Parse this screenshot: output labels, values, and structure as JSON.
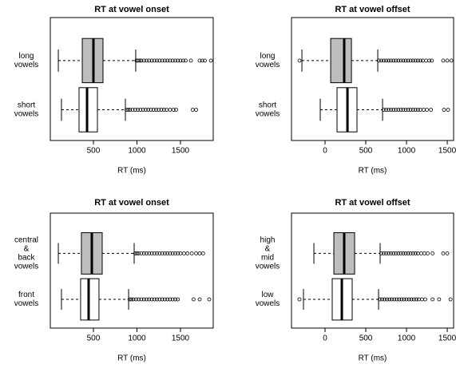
{
  "chart_data": [
    {
      "type": "boxplot",
      "title": "RT at vowel onset",
      "x_label": "RT (ms)",
      "categories": [
        [
          "long",
          "vowels"
        ],
        [
          "short",
          "vowels"
        ]
      ],
      "box_colors": [
        "#bebebe",
        "#ffffff"
      ],
      "xlim": [
        5,
        1876
      ],
      "xticks": [
        500,
        1000,
        1500
      ],
      "boxes": [
        {
          "whislo": 97,
          "q1": 372,
          "med": 500,
          "q3": 610,
          "whishi": 986,
          "fliers": [
            995,
            1010,
            1030,
            1050,
            1080,
            1110,
            1140,
            1170,
            1200,
            1230,
            1260,
            1290,
            1320,
            1350,
            1380,
            1410,
            1440,
            1470,
            1500,
            1530,
            1560,
            1620,
            1720,
            1750,
            1780,
            1850
          ]
        },
        {
          "whislo": 133,
          "q1": 335,
          "med": 427,
          "q3": 546,
          "whishi": 867,
          "fliers": [
            880,
            900,
            920,
            950,
            980,
            1010,
            1040,
            1070,
            1100,
            1130,
            1160,
            1190,
            1220,
            1250,
            1280,
            1310,
            1340,
            1380,
            1420,
            1450,
            1640,
            1680
          ]
        }
      ]
    },
    {
      "type": "boxplot",
      "title": "RT at vowel offset",
      "x_label": "RT (ms)",
      "categories": [
        [
          "long",
          "vowels"
        ],
        [
          "short",
          "vowels"
        ]
      ],
      "box_colors": [
        "#bebebe",
        "#ffffff"
      ],
      "xlim": [
        -412,
        1578
      ],
      "xticks": [
        0,
        500,
        1000,
        1500
      ],
      "boxes": [
        {
          "whislo": -284,
          "q1": 69,
          "med": 235,
          "q3": 324,
          "whishi": 647,
          "fliers": [
            -314,
            660,
            690,
            720,
            750,
            780,
            810,
            840,
            870,
            900,
            930,
            960,
            990,
            1020,
            1050,
            1080,
            1110,
            1140,
            1170,
            1200,
            1240,
            1280,
            1310,
            1450,
            1500,
            1550
          ]
        },
        {
          "whislo": -59,
          "q1": 147,
          "med": 275,
          "q3": 392,
          "whishi": 706,
          "fliers": [
            720,
            750,
            780,
            810,
            840,
            870,
            900,
            930,
            960,
            990,
            1020,
            1050,
            1080,
            1110,
            1140,
            1170,
            1210,
            1250,
            1300,
            1460,
            1510
          ]
        }
      ]
    },
    {
      "type": "boxplot",
      "title": "RT at vowel onset",
      "x_label": "RT (ms)",
      "categories": [
        [
          "central",
          "&",
          "back",
          "vowels"
        ],
        [
          "front",
          "vowels"
        ]
      ],
      "box_colors": [
        "#bebebe",
        "#ffffff"
      ],
      "xlim": [
        5,
        1876
      ],
      "xticks": [
        500,
        1000,
        1500
      ],
      "boxes": [
        {
          "whislo": 97,
          "q1": 362,
          "med": 482,
          "q3": 601,
          "whishi": 968,
          "fliers": [
            980,
            1000,
            1020,
            1050,
            1080,
            1110,
            1140,
            1170,
            1200,
            1230,
            1260,
            1290,
            1320,
            1350,
            1380,
            1410,
            1440,
            1470,
            1500,
            1540,
            1580,
            1630,
            1680,
            1720,
            1760
          ]
        },
        {
          "whislo": 133,
          "q1": 353,
          "med": 445,
          "q3": 564,
          "whishi": 904,
          "fliers": [
            915,
            935,
            960,
            990,
            1020,
            1050,
            1080,
            1110,
            1140,
            1170,
            1200,
            1230,
            1260,
            1290,
            1320,
            1350,
            1380,
            1410,
            1440,
            1470,
            1650,
            1720,
            1830
          ]
        }
      ]
    },
    {
      "type": "boxplot",
      "title": "RT at vowel offset",
      "x_label": "RT (ms)",
      "categories": [
        [
          "high",
          "&",
          "mid",
          "vowels"
        ],
        [
          "low",
          "vowels"
        ]
      ],
      "box_colors": [
        "#bebebe",
        "#ffffff"
      ],
      "xlim": [
        -412,
        1578
      ],
      "xticks": [
        0,
        500,
        1000,
        1500
      ],
      "boxes": [
        {
          "whislo": -137,
          "q1": 108,
          "med": 235,
          "q3": 363,
          "whishi": 676,
          "fliers": [
            690,
            720,
            750,
            780,
            810,
            840,
            870,
            900,
            930,
            960,
            990,
            1020,
            1050,
            1080,
            1110,
            1140,
            1180,
            1220,
            1260,
            1320,
            1450,
            1500
          ]
        },
        {
          "whislo": -265,
          "q1": 88,
          "med": 206,
          "q3": 333,
          "whishi": 657,
          "fliers": [
            -314,
            670,
            700,
            730,
            760,
            790,
            820,
            850,
            880,
            910,
            940,
            970,
            1000,
            1030,
            1060,
            1090,
            1120,
            1150,
            1190,
            1230,
            1320,
            1400,
            1540
          ]
        }
      ]
    }
  ]
}
